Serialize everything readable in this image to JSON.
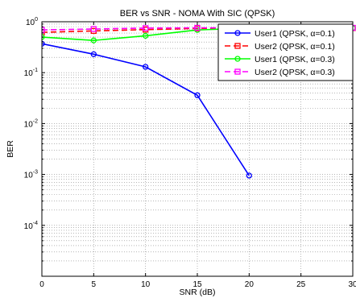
{
  "chart_data": {
    "type": "line",
    "title": "BER vs SNR - NOMA With SIC (QPSK)",
    "xlabel": "SNR (dB)",
    "ylabel": "BER",
    "xlim": [
      0,
      30
    ],
    "ylim": [
      1e-05,
      1
    ],
    "yscale": "log",
    "grid": "on (major and minor, dotted)",
    "legend_position": "top-right",
    "x_ticks": [
      "0",
      "5",
      "10",
      "15",
      "20",
      "25",
      "30"
    ],
    "y_tick_labels": [
      {
        "base": "10",
        "exp": "0",
        "value": 1
      },
      {
        "base": "10",
        "exp": "-1",
        "value": 0.1
      },
      {
        "base": "10",
        "exp": "-2",
        "value": 0.01
      },
      {
        "base": "10",
        "exp": "-3",
        "value": 0.001
      },
      {
        "base": "10",
        "exp": "-4",
        "value": 0.0001
      }
    ],
    "x": [
      0,
      5,
      10,
      15,
      20,
      25,
      30
    ],
    "series": [
      {
        "name": "User1 (QPSK, α=0.1)",
        "color": "#0000ff",
        "line_style": "solid",
        "marker": "circle",
        "values": [
          0.37,
          0.23,
          0.13,
          0.036,
          0.00095,
          null,
          null
        ]
      },
      {
        "name": "User2 (QPSK, α=0.1)",
        "color": "#ff0000",
        "line_style": "dashed",
        "marker": "square",
        "values": [
          0.62,
          0.66,
          0.7,
          0.74,
          0.75,
          0.75,
          0.75
        ]
      },
      {
        "name": "User1 (QPSK, α=0.3)",
        "color": "#00ff00",
        "line_style": "solid",
        "marker": "circle",
        "values": [
          0.5,
          0.43,
          0.53,
          0.69,
          0.75,
          0.75,
          0.75
        ]
      },
      {
        "name": "User2 (QPSK, α=0.3)",
        "color": "#ff00ff",
        "line_style": "dashed",
        "marker": "square",
        "values": [
          0.69,
          0.72,
          0.75,
          0.76,
          0.76,
          0.76,
          0.76
        ]
      }
    ]
  }
}
